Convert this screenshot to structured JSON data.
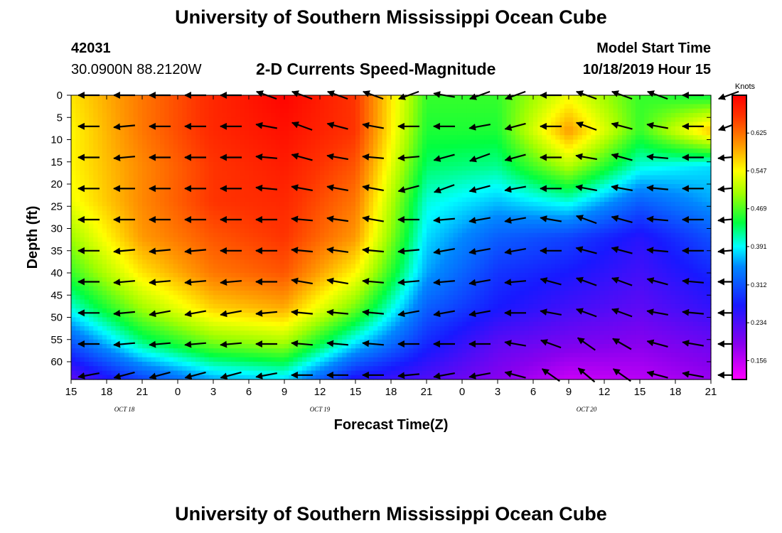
{
  "header": {
    "top_title": "University of Southern Mississippi Ocean Cube",
    "bottom_title": "University of Southern Mississippi Ocean Cube",
    "station_id": "42031",
    "location": "30.0900N 88.2120W",
    "plot_title": "2-D Currents Speed-Magnitude",
    "model_start_label": "Model Start Time",
    "model_start_value": "10/18/2019 Hour 15"
  },
  "chart_data": {
    "type": "heatmap",
    "title": "2-D Currents Speed-Magnitude",
    "xlabel": "Forecast Time(Z)",
    "ylabel": "Depth (ft)",
    "x_tick_labels": [
      "15",
      "18",
      "21",
      "0",
      "3",
      "6",
      "9",
      "12",
      "15",
      "18",
      "21",
      "0",
      "3",
      "6",
      "9",
      "12",
      "15",
      "18",
      "21"
    ],
    "date_labels": [
      {
        "text": "OCT 18",
        "tick_index": 1.5
      },
      {
        "text": "OCT 19",
        "tick_index": 7
      },
      {
        "text": "OCT 20",
        "tick_index": 14.5
      }
    ],
    "ylim": [
      0,
      64
    ],
    "y_ticks": [
      0,
      5,
      10,
      15,
      20,
      25,
      30,
      35,
      40,
      45,
      50,
      55,
      60
    ],
    "colorbar": {
      "unit": "Knots",
      "tick_labels": [
        "0.625",
        "0.547",
        "0.469",
        "0.391",
        "0.312",
        "0.234",
        "0.156"
      ],
      "min": 0.117,
      "max": 0.703,
      "stops": [
        {
          "v": 0.117,
          "c": "#ff00ff"
        },
        {
          "v": 0.19,
          "c": "#8800ee"
        },
        {
          "v": 0.27,
          "c": "#1818ff"
        },
        {
          "v": 0.35,
          "c": "#0088ff"
        },
        {
          "v": 0.391,
          "c": "#00ffff"
        },
        {
          "v": 0.44,
          "c": "#00ff40"
        },
        {
          "v": 0.5,
          "c": "#a0ff00"
        },
        {
          "v": 0.547,
          "c": "#ffff00"
        },
        {
          "v": 0.6,
          "c": "#ff9900"
        },
        {
          "v": 0.66,
          "c": "#ff3300"
        },
        {
          "v": 0.703,
          "c": "#ff0000"
        }
      ]
    },
    "grid_depths": [
      0,
      8,
      16,
      24,
      32,
      40,
      48,
      56,
      64
    ],
    "grid_times": [
      0,
      2,
      4,
      6,
      8,
      10,
      12,
      14,
      16,
      18
    ],
    "speed_grid": [
      [
        0.56,
        0.62,
        0.67,
        0.7,
        0.66,
        0.46,
        0.46,
        0.54,
        0.46,
        0.44
      ],
      [
        0.55,
        0.62,
        0.67,
        0.69,
        0.66,
        0.45,
        0.45,
        0.6,
        0.46,
        0.58
      ],
      [
        0.55,
        0.61,
        0.66,
        0.68,
        0.64,
        0.43,
        0.42,
        0.51,
        0.4,
        0.38
      ],
      [
        0.54,
        0.61,
        0.66,
        0.67,
        0.62,
        0.4,
        0.37,
        0.4,
        0.32,
        0.36
      ],
      [
        0.5,
        0.6,
        0.64,
        0.66,
        0.6,
        0.38,
        0.32,
        0.3,
        0.26,
        0.31
      ],
      [
        0.46,
        0.56,
        0.62,
        0.64,
        0.55,
        0.36,
        0.29,
        0.27,
        0.24,
        0.28
      ],
      [
        0.4,
        0.5,
        0.57,
        0.59,
        0.48,
        0.32,
        0.27,
        0.24,
        0.22,
        0.25
      ],
      [
        0.31,
        0.42,
        0.48,
        0.5,
        0.38,
        0.28,
        0.22,
        0.2,
        0.19,
        0.21
      ],
      [
        0.22,
        0.3,
        0.36,
        0.38,
        0.26,
        0.23,
        0.19,
        0.15,
        0.16,
        0.18
      ]
    ],
    "arrow_times": [
      0,
      1,
      2,
      3,
      4,
      5,
      6,
      7,
      8,
      9,
      10,
      11,
      12,
      13,
      14,
      15,
      16,
      17,
      18
    ],
    "arrow_depths": [
      0,
      7,
      14,
      21,
      28,
      35,
      42,
      49,
      56,
      63
    ],
    "arrow_direction_deg": [
      [
        180,
        180,
        180,
        180,
        180,
        160,
        160,
        160,
        160,
        200,
        170,
        200,
        200,
        180,
        160,
        160,
        160,
        180,
        200
      ],
      [
        180,
        185,
        180,
        180,
        180,
        170,
        160,
        165,
        170,
        180,
        180,
        190,
        195,
        180,
        160,
        165,
        170,
        180,
        200
      ],
      [
        180,
        185,
        180,
        180,
        180,
        175,
        165,
        170,
        175,
        185,
        195,
        200,
        195,
        180,
        170,
        165,
        175,
        180,
        185
      ],
      [
        180,
        180,
        180,
        180,
        180,
        175,
        170,
        170,
        170,
        195,
        200,
        195,
        190,
        180,
        170,
        170,
        175,
        180,
        185
      ],
      [
        180,
        180,
        180,
        180,
        180,
        180,
        175,
        172,
        170,
        180,
        185,
        190,
        190,
        170,
        160,
        165,
        175,
        180,
        185
      ],
      [
        180,
        185,
        185,
        185,
        180,
        180,
        175,
        172,
        175,
        185,
        190,
        190,
        190,
        180,
        165,
        165,
        175,
        180,
        185
      ],
      [
        180,
        185,
        185,
        185,
        185,
        180,
        170,
        170,
        175,
        185,
        185,
        190,
        185,
        165,
        160,
        160,
        165,
        175,
        180
      ],
      [
        180,
        185,
        190,
        190,
        190,
        185,
        175,
        175,
        175,
        190,
        190,
        190,
        180,
        170,
        160,
        160,
        170,
        175,
        180
      ],
      [
        180,
        185,
        185,
        185,
        185,
        180,
        175,
        175,
        175,
        180,
        180,
        180,
        170,
        160,
        145,
        150,
        165,
        170,
        180
      ],
      [
        190,
        195,
        195,
        195,
        195,
        190,
        180,
        180,
        180,
        185,
        190,
        190,
        165,
        145,
        140,
        145,
        165,
        170,
        180
      ]
    ]
  }
}
